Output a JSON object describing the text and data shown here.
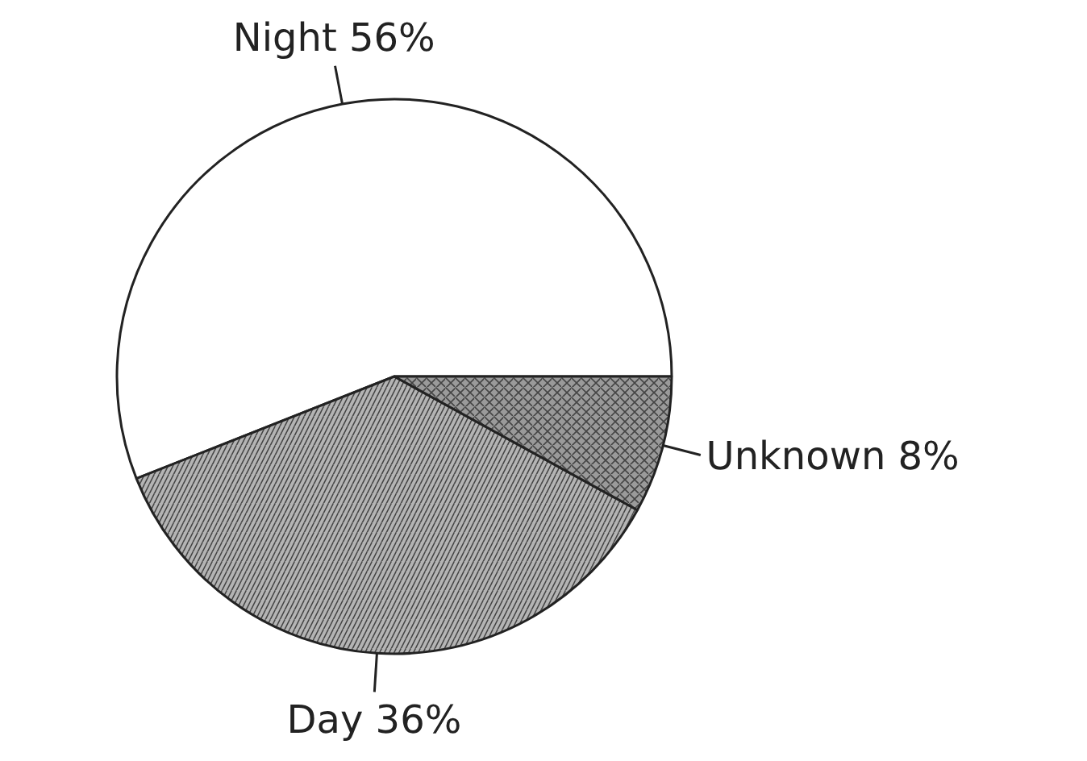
{
  "chart_data": {
    "type": "pie",
    "categories": [
      "Night",
      "Day",
      "Unknown"
    ],
    "values": [
      56,
      36,
      8
    ],
    "value_labels": [
      "56%",
      "36%",
      "8%"
    ],
    "colors": [
      "#ffffff",
      "#b4b4b4",
      "#9a9a9a"
    ]
  }
}
